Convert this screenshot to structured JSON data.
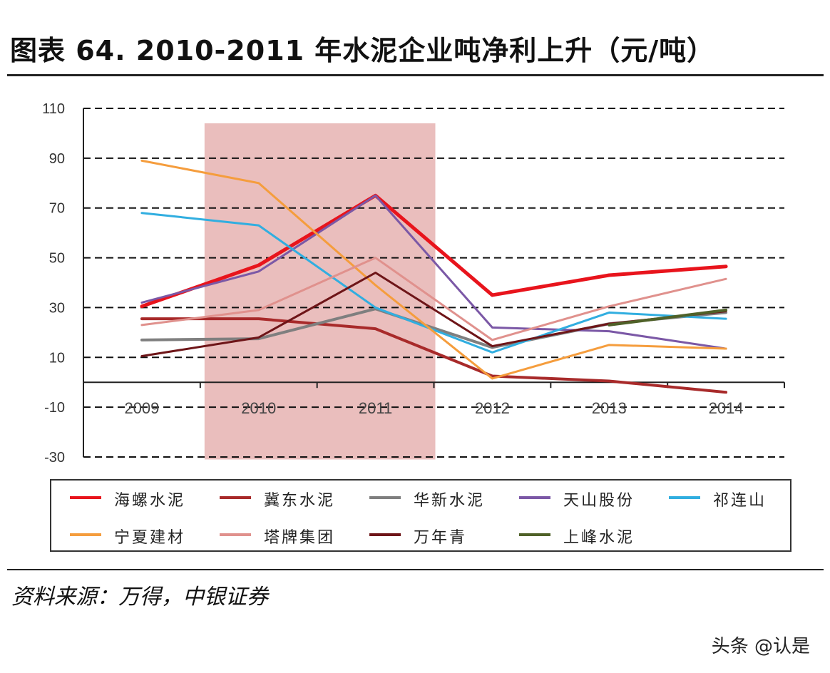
{
  "title": "图表 64. 2010-2011 年水泥企业吨净利上升（元/吨）",
  "source": "资料来源：万得，中银证券",
  "watermark": "头条 @认是",
  "chart_data": {
    "type": "line",
    "title": "",
    "xlabel": "",
    "ylabel": "",
    "categories": [
      "2009",
      "2010",
      "2011",
      "2012",
      "2013",
      "2014"
    ],
    "ylim": [
      -30,
      110
    ],
    "yticks": [
      110,
      90,
      70,
      50,
      30,
      10,
      -10,
      -30
    ],
    "grid": "dashed horizontal",
    "highlight": {
      "from": "2010",
      "to": "2011",
      "color": "#e6b3b1"
    },
    "legend": "bottom",
    "series": [
      {
        "name": "海螺水泥",
        "color": "#e8141c",
        "width": 5,
        "values": [
          30.5,
          47,
          75,
          35,
          43,
          46.5
        ]
      },
      {
        "name": "冀东水泥",
        "color": "#a82a2a",
        "width": 4,
        "values": [
          25.5,
          25.5,
          21.5,
          2.5,
          0.5,
          -4
        ]
      },
      {
        "name": "华新水泥",
        "color": "#7f7f7f",
        "width": 4,
        "values": [
          17,
          17.5,
          29.5,
          14,
          23.5,
          28
        ]
      },
      {
        "name": "天山股份",
        "color": "#7b58a6",
        "width": 3,
        "values": [
          32,
          44.5,
          75,
          22,
          20.5,
          13.5
        ]
      },
      {
        "name": "祁连山",
        "color": "#31aee0",
        "width": 3,
        "values": [
          68,
          63,
          30,
          12,
          28,
          25.5
        ]
      },
      {
        "name": "宁夏建材",
        "color": "#f59d3d",
        "width": 3,
        "values": [
          89,
          80,
          39,
          1.5,
          15,
          13.5
        ]
      },
      {
        "name": "塔牌集团",
        "color": "#e0918d",
        "width": 3,
        "values": [
          23,
          29,
          50,
          17,
          30.5,
          41.5
        ]
      },
      {
        "name": "万年青",
        "color": "#6e1518",
        "width": 3,
        "values": [
          10.5,
          18,
          44,
          14.5,
          23.5,
          28.5
        ]
      },
      {
        "name": "上峰水泥",
        "color": "#4f6128",
        "width": 4,
        "values": [
          null,
          null,
          null,
          null,
          23,
          29
        ]
      }
    ]
  }
}
